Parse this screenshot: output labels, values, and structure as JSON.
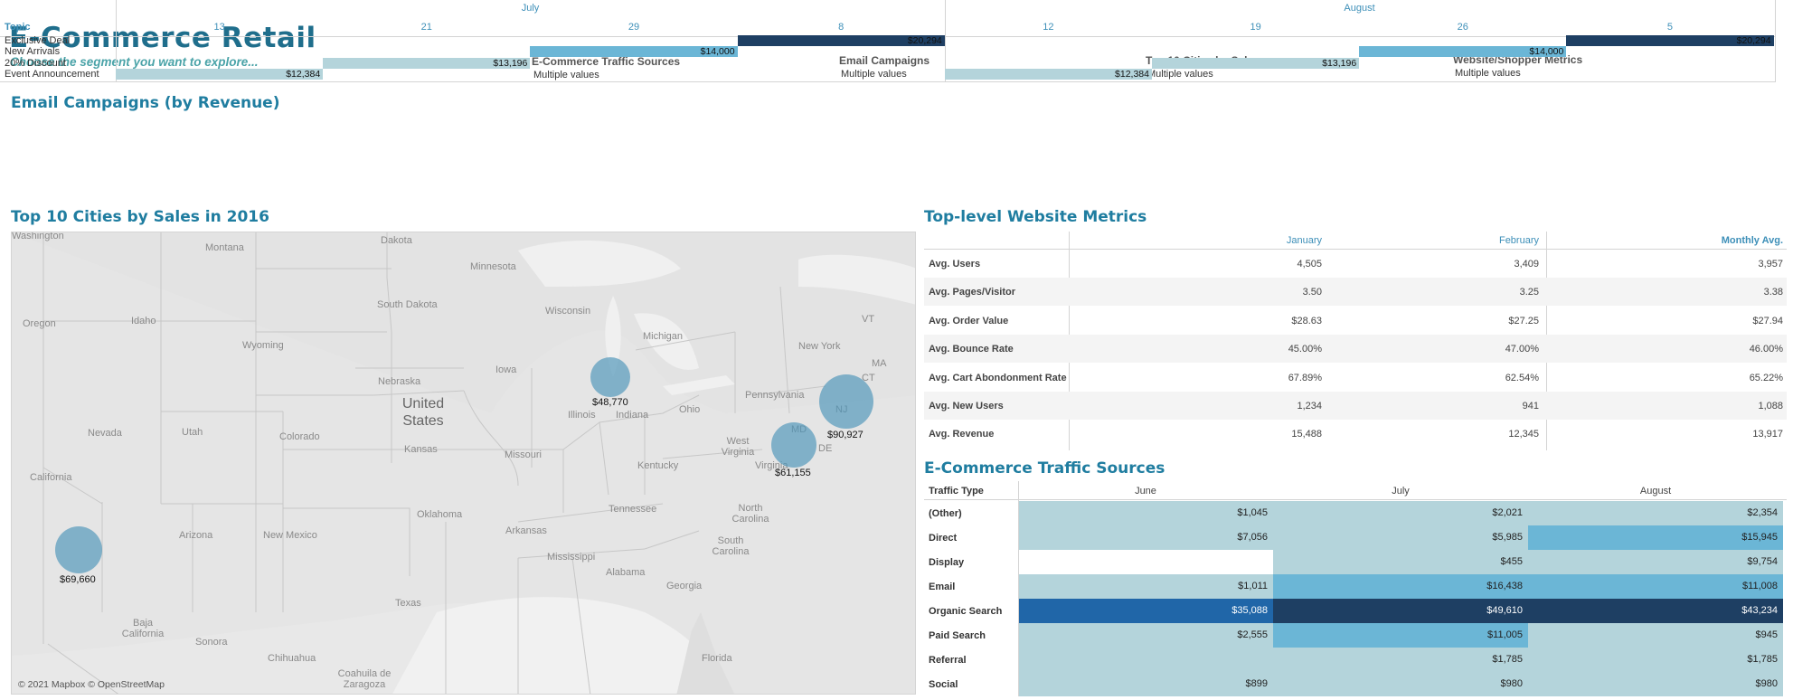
{
  "header": {
    "title": "E-Commerce Retail",
    "subtitle": "Choose the segment you want to explore..."
  },
  "filters": [
    {
      "label": "E-Commerce Traffic Sources",
      "value": "Multiple values"
    },
    {
      "label": "Email Campaigns",
      "value": "Multiple values"
    },
    {
      "label": "Top 10 Cities by Sales",
      "value": "Multiple values"
    },
    {
      "label": "Website/Shopper Metrics",
      "value": "Multiple values"
    }
  ],
  "email": {
    "title": "Email Campaigns (by Revenue)",
    "months": [
      "July",
      "August"
    ],
    "days": [
      "13",
      "21",
      "29",
      "8",
      "12",
      "19",
      "26",
      "5"
    ],
    "topic_label": "Topic",
    "topics": [
      "Exclusive Deal",
      "New Arrivals",
      "20% Discount",
      "Event Announcement"
    ],
    "bars": [
      {
        "topic": 3,
        "col": 0,
        "value": "$12,384",
        "color": "#b4d4db"
      },
      {
        "topic": 2,
        "col": 1,
        "value": "$13,196",
        "color": "#b4d4db"
      },
      {
        "topic": 1,
        "col": 2,
        "value": "$14,000",
        "color": "#6bb6d6"
      },
      {
        "topic": 0,
        "col": 3,
        "value": "$20,294",
        "color": "#1e3f63"
      },
      {
        "topic": 3,
        "col": 4,
        "value": "$12,384",
        "color": "#b4d4db"
      },
      {
        "topic": 2,
        "col": 5,
        "value": "$13,196",
        "color": "#b4d4db"
      },
      {
        "topic": 1,
        "col": 6,
        "value": "$14,000",
        "color": "#6bb6d6"
      },
      {
        "topic": 0,
        "col": 7,
        "value": "$20,294",
        "color": "#1e3f63"
      }
    ]
  },
  "map": {
    "title": "Top 10 Cities by Sales in 2016",
    "attribution": "© 2021 Mapbox © OpenStreetMap",
    "labels": [
      "Washington",
      "Montana",
      "Dakota",
      "Minnesota",
      "South Dakota",
      "Wisconsin",
      "Michigan",
      "Oregon",
      "Idaho",
      "Wyoming",
      "Iowa",
      "Nebraska",
      "United States",
      "Nevada",
      "Utah",
      "Colorado",
      "Kansas",
      "Missouri",
      "Illinois",
      "Indiana",
      "Ohio",
      "Pennsylvania",
      "New York",
      "VT",
      "MA",
      "CT",
      "NJ",
      "MD",
      "DE",
      "West Virginia",
      "Virginia",
      "Kentucky",
      "California",
      "Oklahoma",
      "Arkansas",
      "Tennessee",
      "North Carolina",
      "South Carolina",
      "Arizona",
      "New Mexico",
      "Texas",
      "Mississippi",
      "Alabama",
      "Georgia",
      "Florida",
      "Baja California",
      "Sonora",
      "Chihuahua",
      "Coahuila de Zaragoza"
    ],
    "cities": [
      {
        "sales": "$69,660"
      },
      {
        "sales": "$48,770"
      },
      {
        "sales": "$61,155"
      },
      {
        "sales": "$90,927"
      }
    ]
  },
  "metrics": {
    "title": "Top-level Website Metrics",
    "columns": [
      "January",
      "February",
      "Monthly Avg."
    ],
    "rows": [
      {
        "label": "Avg. Users",
        "values": [
          "4,505",
          "3,409",
          "3,957"
        ]
      },
      {
        "label": "Avg. Pages/Visitor",
        "values": [
          "3.50",
          "3.25",
          "3.38"
        ]
      },
      {
        "label": "Avg. Order Value",
        "values": [
          "$28.63",
          "$27.25",
          "$27.94"
        ]
      },
      {
        "label": "Avg. Bounce Rate",
        "values": [
          "45.00%",
          "47.00%",
          "46.00%"
        ]
      },
      {
        "label": "Avg. Cart Abondonment Rate",
        "values": [
          "67.89%",
          "62.54%",
          "65.22%"
        ]
      },
      {
        "label": "Avg. New Users",
        "values": [
          "1,234",
          "941",
          "1,088"
        ]
      },
      {
        "label": "Avg. Revenue",
        "values": [
          "15,488",
          "12,345",
          "13,917"
        ]
      }
    ]
  },
  "traffic": {
    "title": "E-Commerce Traffic Sources",
    "type_label": "Traffic Type",
    "columns": [
      "June",
      "July",
      "August"
    ],
    "rows": [
      {
        "label": "(Other)",
        "values": [
          "$1,045",
          "$2,021",
          "$2,354"
        ],
        "colors": [
          "#b4d4db",
          "#b4d4db",
          "#b4d4db"
        ]
      },
      {
        "label": "Direct",
        "values": [
          "$7,056",
          "$5,985",
          "$15,945"
        ],
        "colors": [
          "#b4d4db",
          "#b4d4db",
          "#6bb6d6"
        ]
      },
      {
        "label": "Display",
        "values": [
          "",
          "$455",
          "$9,754"
        ],
        "colors": [
          "#ffffff",
          "#b4d4db",
          "#b4d4db"
        ]
      },
      {
        "label": "Email",
        "values": [
          "$1,011",
          "$16,438",
          "$11,008"
        ],
        "colors": [
          "#b4d4db",
          "#6bb6d6",
          "#6bb6d6"
        ]
      },
      {
        "label": "Organic Search",
        "values": [
          "$35,088",
          "$49,610",
          "$43,234"
        ],
        "colors": [
          "#2066a8",
          "#1e3f63",
          "#1e3f63"
        ]
      },
      {
        "label": "Paid Search",
        "values": [
          "$2,555",
          "$11,005",
          "$945"
        ],
        "colors": [
          "#b4d4db",
          "#6bb6d6",
          "#b4d4db"
        ]
      },
      {
        "label": "Referral",
        "values": [
          "",
          "$1,785",
          "$1,785"
        ],
        "colors": [
          "#b4d4db",
          "#b4d4db",
          "#b4d4db"
        ]
      },
      {
        "label": "Social",
        "values": [
          "$899",
          "$980",
          "$980"
        ],
        "colors": [
          "#b4d4db",
          "#b4d4db",
          "#b4d4db"
        ]
      }
    ]
  }
}
